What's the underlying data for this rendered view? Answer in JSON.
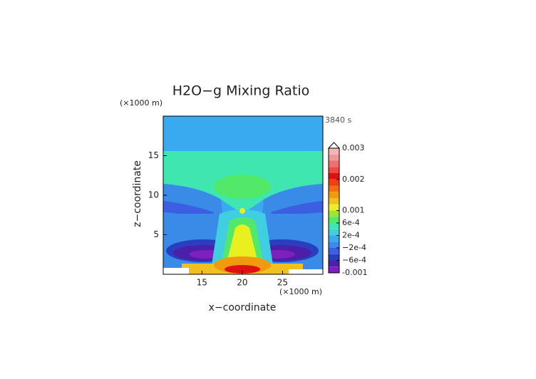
{
  "chart_data": {
    "type": "contour",
    "title": "H2O−g Mixing Ratio",
    "time_label": "3840 s",
    "x_label": "x−coordinate",
    "y_label": "z−coordinate",
    "x_unit": "(×1000 m)",
    "y_unit": "(×1000 m)",
    "xlim": [
      10.2,
      30
    ],
    "xticks": [
      15,
      20,
      25
    ],
    "ylim": [
      0,
      20
    ],
    "yticks": [
      5,
      10,
      15
    ],
    "levels": [
      -0.001,
      -0.0008,
      -0.0006,
      -0.0004,
      -0.0002,
      0,
      0.0002,
      0.0004,
      0.0006,
      0.0008,
      0.001,
      0.0012,
      0.0014,
      0.0016,
      0.0018,
      0.002,
      0.0022,
      0.0024,
      0.0026,
      0.0028,
      0.003
    ],
    "colors": [
      "#7f1fbf",
      "#4b1fa8",
      "#2a3fbf",
      "#3b5fe0",
      "#3a8be8",
      "#3aaaf0",
      "#40cfe0",
      "#3fe6b0",
      "#52e86a",
      "#9be830",
      "#e8f020",
      "#f0c020",
      "#f09a10",
      "#f07010",
      "#f04010",
      "#e01010",
      "#f04848",
      "#f07070",
      "#f09898",
      "#f0b8b8"
    ],
    "colorbar_ticks": [
      -0.001,
      {
        "value": -0.0006,
        "label": "−6e-4"
      },
      {
        "value": -0.0002,
        "label": "−2e-4"
      },
      {
        "value": 0.0002,
        "label": "2e-4"
      },
      {
        "value": 0.0006,
        "label": "6e-4"
      },
      0.001,
      0.002,
      0.003
    ],
    "extend": "max"
  }
}
